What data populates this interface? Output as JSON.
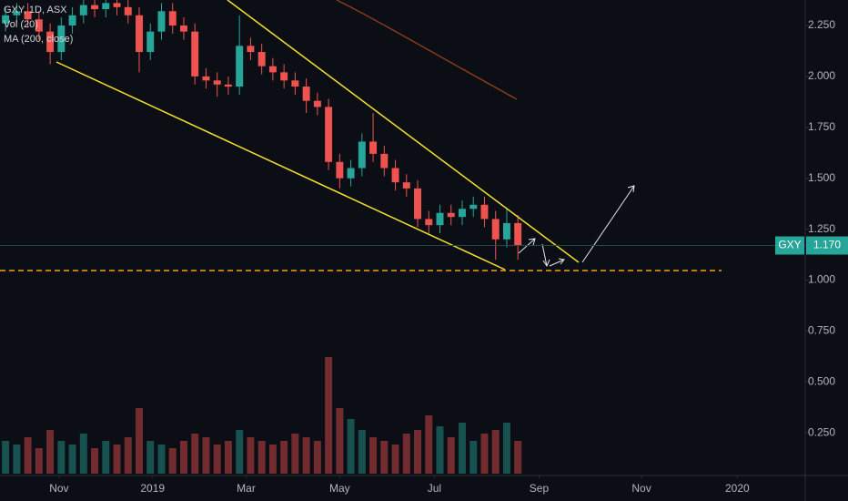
{
  "chart_data": {
    "type": "candlestick",
    "title": "GXY, 1D, ASX",
    "indicators": [
      "Vol (20)",
      "MA (200, close)"
    ],
    "symbol": "GXY",
    "last_price": {
      "value": 1.17,
      "label": "1.170"
    },
    "x": [
      0.5,
      1.5,
      2.5,
      3.5,
      4.5,
      5.5,
      6.5,
      7.5,
      8.5,
      9.5,
      10.5,
      11.5,
      12.5,
      13.5,
      14.5,
      15.5,
      16.5,
      17.5,
      18.5,
      19.5,
      20.5,
      21.5,
      22.5,
      23.5,
      24.5,
      25.5,
      26.5,
      27.5,
      28.5,
      29.5,
      30.5,
      31.5,
      32.5,
      33.5,
      34.5,
      35.5,
      36.5,
      37.5,
      38.5,
      39.5,
      40.5,
      41.5,
      42.5,
      43.5,
      44.5,
      45.5,
      46.5
    ],
    "open": [
      2.26,
      2.3,
      2.32,
      2.28,
      2.22,
      2.12,
      2.25,
      2.3,
      2.35,
      2.33,
      2.36,
      2.34,
      2.3,
      2.12,
      2.22,
      2.32,
      2.25,
      2.22,
      2.0,
      1.98,
      1.96,
      1.95,
      2.15,
      2.12,
      2.05,
      2.02,
      1.98,
      1.95,
      1.88,
      1.85,
      1.58,
      1.5,
      1.55,
      1.68,
      1.62,
      1.55,
      1.48,
      1.45,
      1.3,
      1.27,
      1.33,
      1.31,
      1.35,
      1.37,
      1.3,
      1.2,
      1.28
    ],
    "high": [
      2.34,
      2.36,
      2.36,
      2.32,
      2.26,
      2.29,
      2.34,
      2.39,
      2.39,
      2.4,
      2.4,
      2.38,
      2.34,
      2.26,
      2.36,
      2.36,
      2.29,
      2.26,
      2.04,
      2.02,
      2.0,
      2.3,
      2.19,
      2.16,
      2.09,
      2.06,
      2.02,
      1.99,
      1.92,
      1.89,
      1.62,
      1.59,
      1.72,
      1.82,
      1.66,
      1.59,
      1.52,
      1.49,
      1.34,
      1.37,
      1.37,
      1.39,
      1.41,
      1.41,
      1.34,
      1.35,
      1.32
    ],
    "low": [
      2.22,
      2.26,
      2.24,
      2.18,
      2.06,
      2.08,
      2.21,
      2.26,
      2.29,
      2.29,
      2.3,
      2.26,
      2.02,
      2.08,
      2.18,
      2.21,
      2.18,
      1.96,
      1.94,
      1.9,
      1.91,
      1.91,
      2.08,
      2.01,
      1.98,
      1.94,
      1.91,
      1.82,
      1.81,
      1.54,
      1.45,
      1.46,
      1.51,
      1.58,
      1.51,
      1.44,
      1.41,
      1.26,
      1.23,
      1.23,
      1.27,
      1.27,
      1.31,
      1.26,
      1.1,
      1.16,
      1.1
    ],
    "close": [
      2.3,
      2.32,
      2.28,
      2.22,
      2.12,
      2.25,
      2.3,
      2.35,
      2.33,
      2.36,
      2.34,
      2.3,
      2.12,
      2.22,
      2.32,
      2.25,
      2.22,
      2.0,
      1.98,
      1.96,
      1.95,
      2.15,
      2.12,
      2.05,
      2.02,
      1.98,
      1.95,
      1.88,
      1.85,
      1.58,
      1.5,
      1.55,
      1.68,
      1.62,
      1.55,
      1.48,
      1.45,
      1.3,
      1.27,
      1.33,
      1.31,
      1.35,
      1.37,
      1.3,
      1.2,
      1.28,
      1.17
    ],
    "volume": [
      9,
      8,
      10,
      7,
      12,
      9,
      8,
      11,
      7,
      9,
      8,
      10,
      18,
      9,
      8,
      7,
      9,
      11,
      10,
      8,
      9,
      12,
      10,
      9,
      8,
      9,
      11,
      10,
      9,
      32,
      18,
      15,
      12,
      10,
      9,
      8,
      11,
      12,
      16,
      13,
      10,
      14,
      9,
      11,
      12,
      14,
      9
    ],
    "up_color": "#26a69a",
    "down_color": "#ef5350",
    "xlim": [
      0,
      72.3
    ],
    "xticks": [
      {
        "value": 5.3,
        "label": "Nov"
      },
      {
        "value": 13.7,
        "label": "2019"
      },
      {
        "value": 22.1,
        "label": "Mar"
      },
      {
        "value": 30.5,
        "label": "May"
      },
      {
        "value": 39.0,
        "label": "Jul"
      },
      {
        "value": 48.4,
        "label": "Sep"
      },
      {
        "value": 57.6,
        "label": "Nov"
      },
      {
        "value": 66.2,
        "label": "2020"
      }
    ],
    "ylim": [
      0.05,
      2.375
    ],
    "yticks": [
      {
        "value": 0.25,
        "label": "0.250"
      },
      {
        "value": 0.5,
        "label": "0.500"
      },
      {
        "value": 0.75,
        "label": "0.750"
      },
      {
        "value": 1,
        "label": "1.000"
      },
      {
        "value": 1.25,
        "label": "1.250"
      },
      {
        "value": 1.5,
        "label": "1.500"
      },
      {
        "value": 1.75,
        "label": "1.750"
      },
      {
        "value": 2,
        "label": "2.000"
      },
      {
        "value": 2.25,
        "label": "2.250"
      }
    ]
  }
}
